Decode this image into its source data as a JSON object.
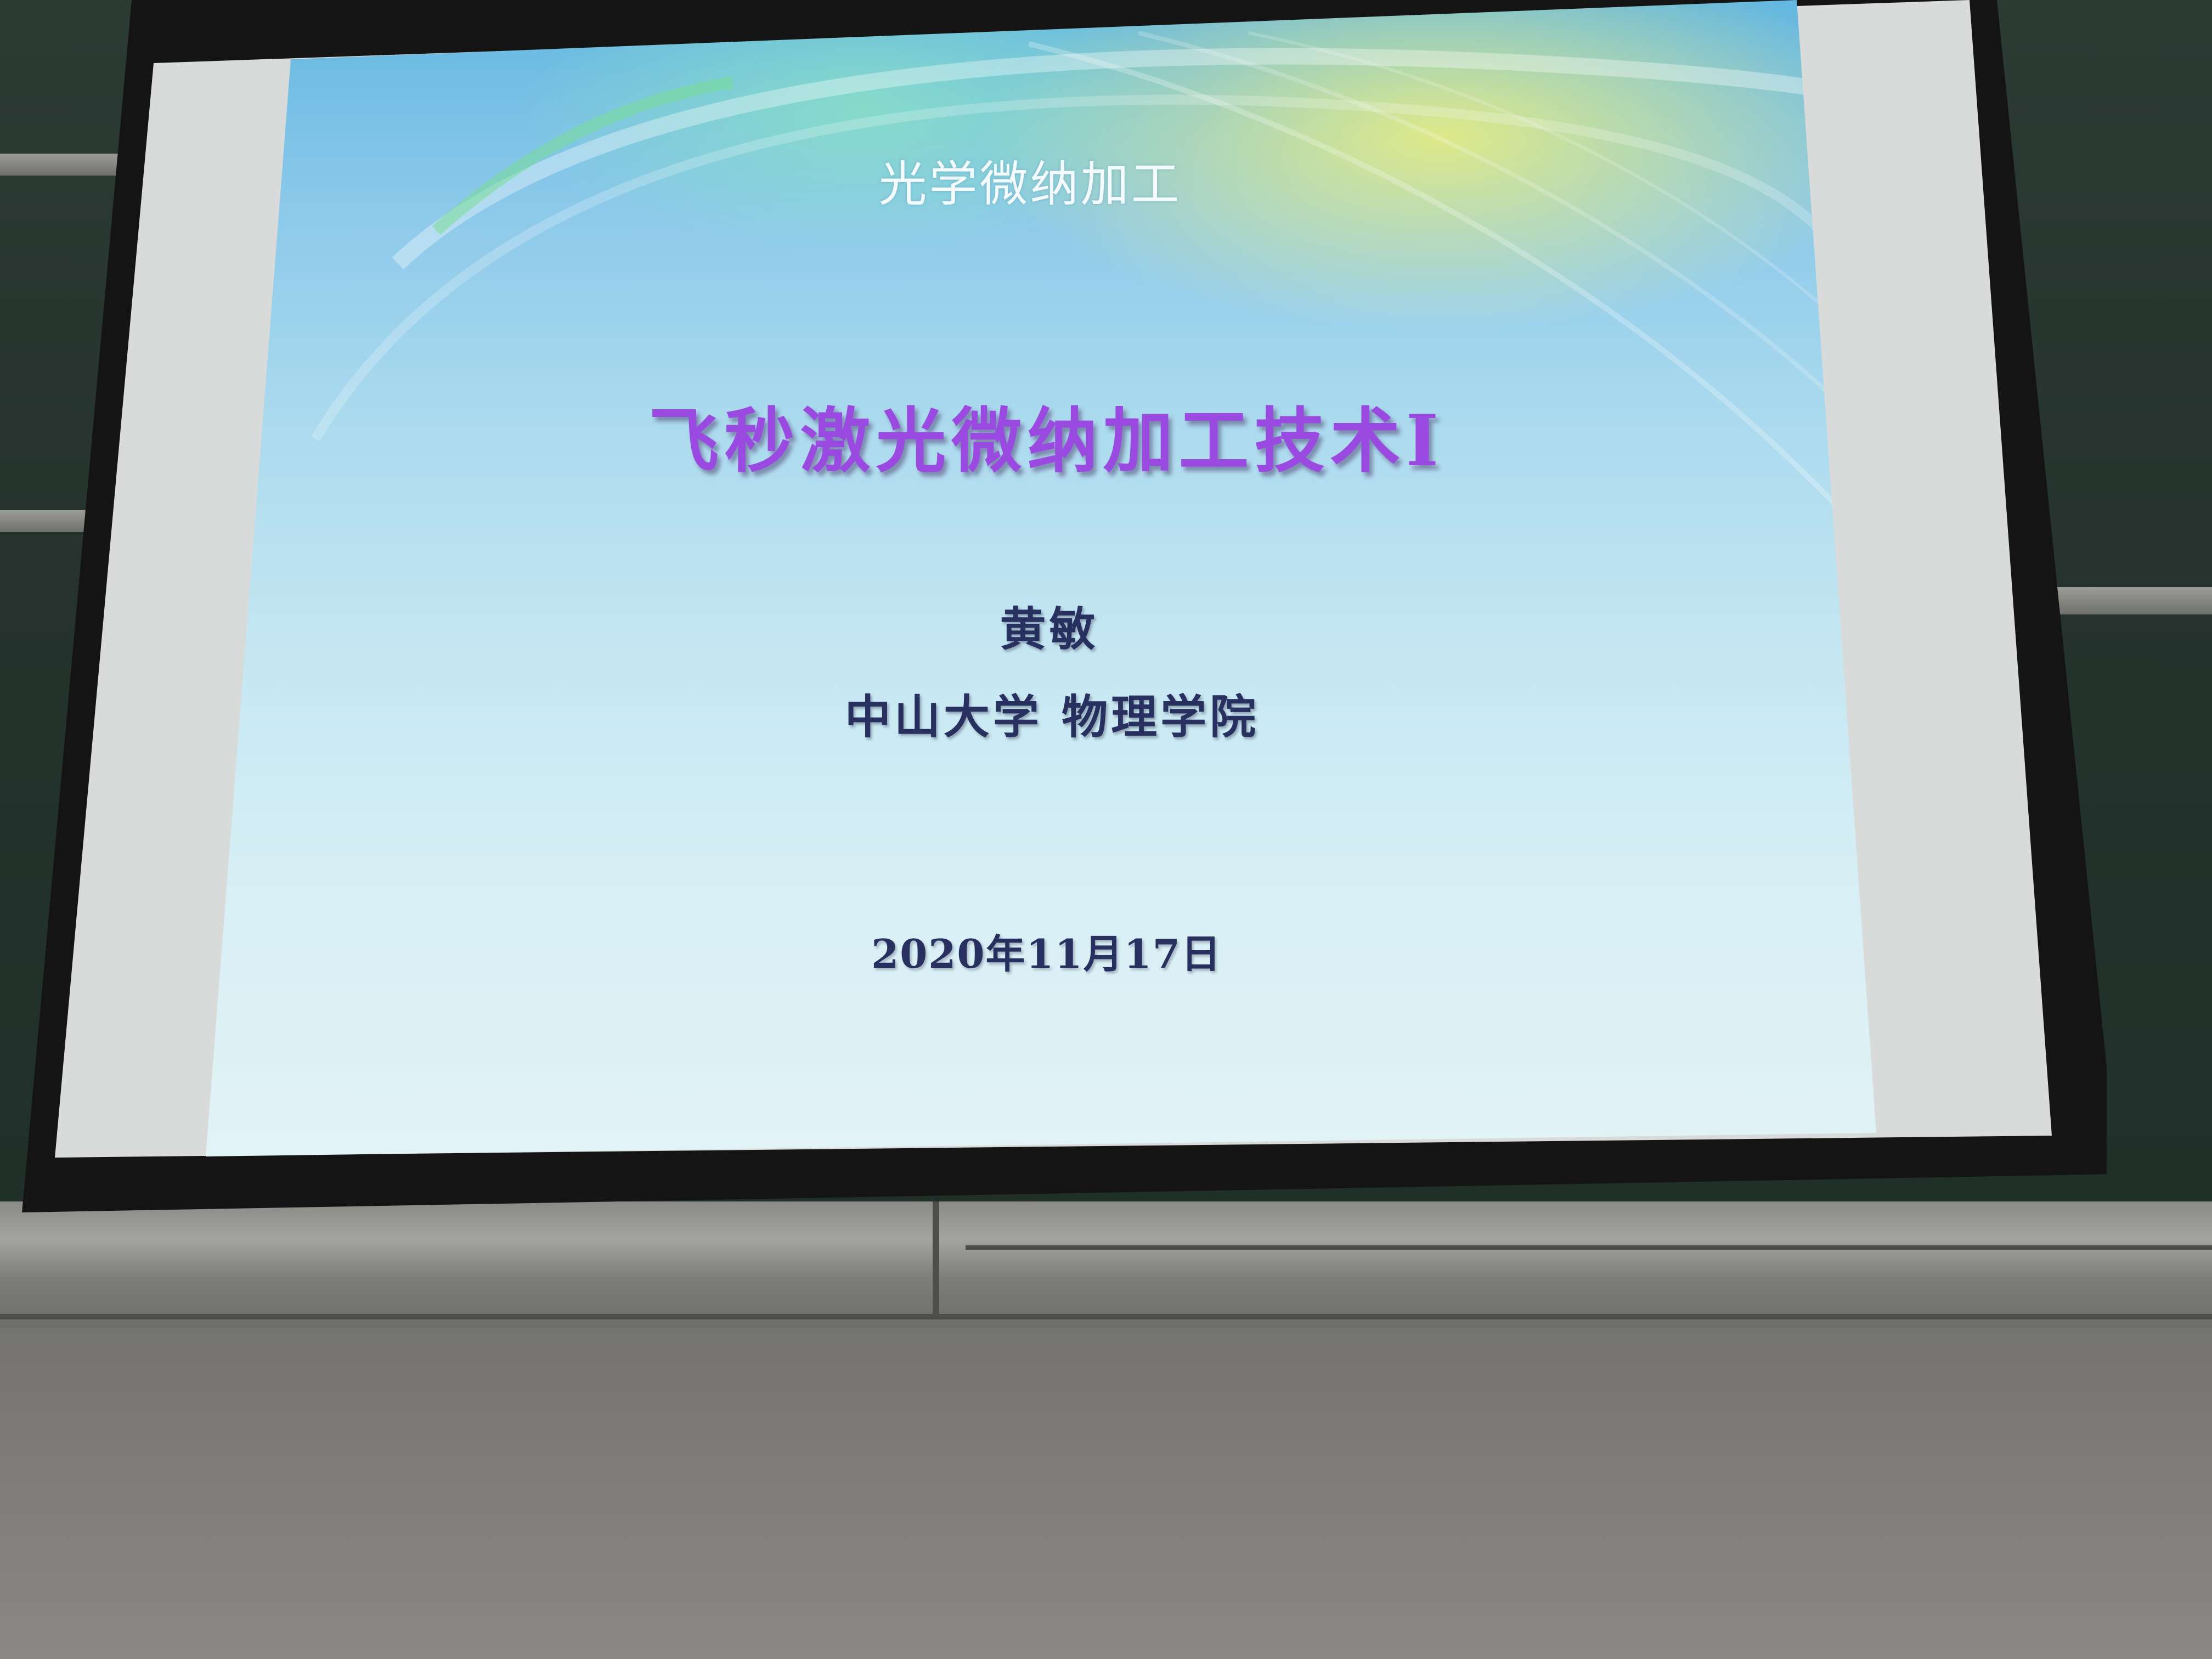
{
  "slide": {
    "course_title": "光学微纳加工",
    "lecture_title": "飞秒激光微纳加工技术I",
    "author": "黄敏",
    "affiliation": "中山大学 物理学院",
    "date": "2020年11月17日"
  },
  "colors": {
    "lecture_title": "#9a4ae0",
    "body_text": "#27305e",
    "course_title": "#f4fbff"
  }
}
